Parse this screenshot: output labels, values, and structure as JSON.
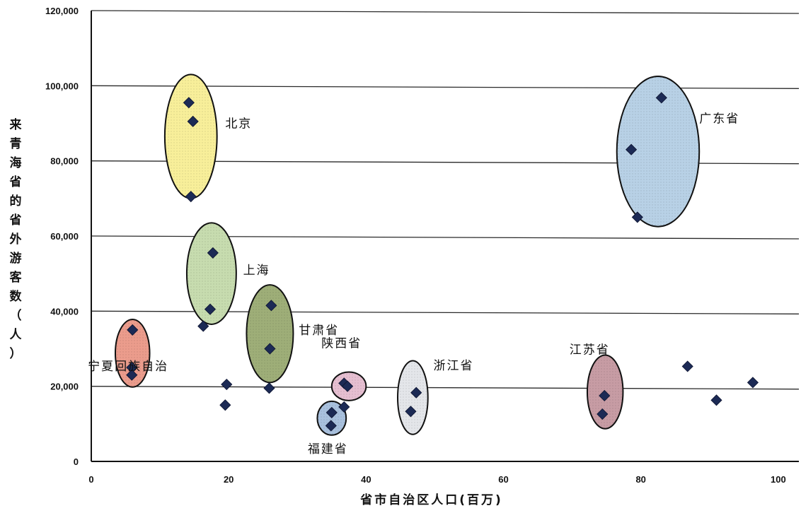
{
  "chart_data": {
    "type": "scatter",
    "title": "",
    "xlabel": "省市自治区人口(百万)",
    "ylabel_chars": [
      "来",
      "青",
      "海",
      "省",
      "的",
      "省",
      "外",
      "游",
      "客",
      "数",
      "（",
      "人",
      "）"
    ],
    "xlim": [
      0,
      103
    ],
    "ylim": [
      0,
      120000
    ],
    "x_ticks": [
      {
        "value": 0,
        "label": "0"
      },
      {
        "value": 20,
        "label": "20"
      },
      {
        "value": 40,
        "label": "40"
      },
      {
        "value": 60,
        "label": "60"
      },
      {
        "value": 80,
        "label": "80"
      },
      {
        "value": 100,
        "label": "100"
      }
    ],
    "y_ticks": [
      {
        "value": 0,
        "label": "0"
      },
      {
        "value": 20000,
        "label": "20,000"
      },
      {
        "value": 40000,
        "label": "40,000"
      },
      {
        "value": 60000,
        "label": "60,000"
      },
      {
        "value": 80000,
        "label": "80,000"
      },
      {
        "value": 100000,
        "label": "100,000"
      },
      {
        "value": 120000,
        "label": "120,000"
      }
    ],
    "grid": "horizontal",
    "marker": "diamond",
    "marker_color": "#1c2a55",
    "groups": [
      {
        "label": "北京",
        "fill": "#f8ef9a",
        "ellipse": {
          "cx": 14.5,
          "cy": 86500,
          "rx": 3.8,
          "ry": 16500
        },
        "points": [
          [
            14.2,
            95500
          ],
          [
            14.8,
            90500
          ],
          [
            14.5,
            70500
          ]
        ]
      },
      {
        "label": "上海",
        "fill": "#c7dcaf",
        "ellipse": {
          "cx": 17.5,
          "cy": 50000,
          "rx": 3.6,
          "ry": 13500
        },
        "points": [
          [
            17.7,
            55500
          ],
          [
            17.3,
            40500
          ],
          [
            16.3,
            36000
          ]
        ]
      },
      {
        "label": "甘肃省",
        "fill": "#9eae78",
        "ellipse": {
          "cx": 26.0,
          "cy": 34000,
          "rx": 3.4,
          "ry": 13000
        },
        "points": [
          [
            26.2,
            41500
          ],
          [
            26.0,
            30000
          ],
          [
            25.9,
            19500
          ]
        ]
      },
      {
        "label": "宁夏回族自治",
        "fill": "#eb9c8c",
        "ellipse": {
          "cx": 6.0,
          "cy": 28800,
          "rx": 2.5,
          "ry": 9000
        },
        "points": [
          [
            6.0,
            35000
          ],
          [
            5.9,
            25000
          ],
          [
            5.9,
            23000
          ]
        ]
      },
      {
        "label": "陕西省",
        "fill": "#e6bfd1",
        "ellipse": {
          "cx": 37.5,
          "cy": 20000,
          "rx": 2.5,
          "ry": 3800
        },
        "points": [
          [
            36.8,
            20800
          ],
          [
            37.3,
            20000
          ],
          [
            36.8,
            14500
          ]
        ]
      },
      {
        "label": "福建省",
        "fill": "#a9c1de",
        "ellipse": {
          "cx": 35.0,
          "cy": 11500,
          "rx": 2.1,
          "ry": 4500
        },
        "points": [
          [
            35.0,
            13000
          ],
          [
            34.9,
            9500
          ]
        ]
      },
      {
        "label": "浙江省",
        "fill": "#e4e6ea",
        "ellipse": {
          "cx": 46.8,
          "cy": 17000,
          "rx": 2.2,
          "ry": 9800
        },
        "points": [
          [
            47.3,
            18300
          ],
          [
            46.5,
            13300
          ]
        ]
      },
      {
        "label": "江苏省",
        "fill": "#c79ca4",
        "ellipse": {
          "cx": 74.8,
          "cy": 18500,
          "rx": 2.6,
          "ry": 9800
        },
        "points": [
          [
            74.7,
            17500
          ],
          [
            74.4,
            12600
          ]
        ]
      },
      {
        "label": "广东省",
        "fill": "#b8d1e6",
        "ellipse": {
          "cx": 82.5,
          "cy": 82500,
          "rx": 6.0,
          "ry": 20000
        },
        "points": [
          [
            83.0,
            96800
          ],
          [
            78.6,
            83000
          ],
          [
            79.5,
            65000
          ]
        ]
      }
    ],
    "other_points": [
      [
        19.7,
        20500
      ],
      [
        19.5,
        15000
      ],
      [
        86.8,
        25300
      ],
      [
        91.0,
        16300
      ],
      [
        96.3,
        21000
      ]
    ]
  }
}
